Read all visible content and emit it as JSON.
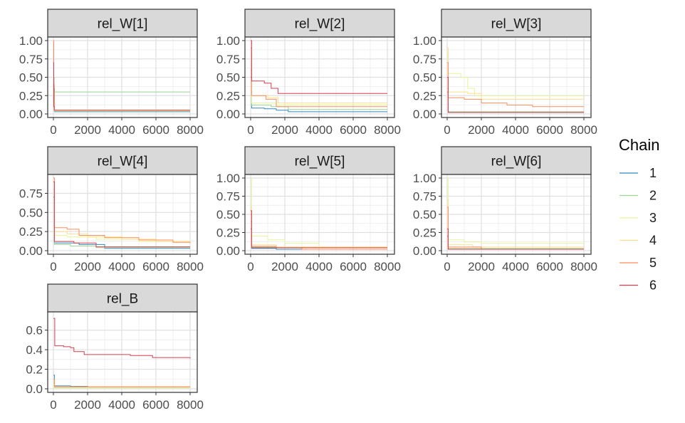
{
  "legend": {
    "title": "Chain",
    "items": [
      {
        "label": "1",
        "color": "#3288bd"
      },
      {
        "label": "2",
        "color": "#99d594"
      },
      {
        "label": "3",
        "color": "#e6f598"
      },
      {
        "label": "4",
        "color": "#fee08b"
      },
      {
        "label": "5",
        "color": "#fc8d59"
      },
      {
        "label": "6",
        "color": "#d53e4f"
      }
    ]
  },
  "chart_data": [
    {
      "type": "line",
      "title": "rel_W[1]",
      "xlim": [
        0,
        8000
      ],
      "ylim": [
        0,
        1
      ],
      "x_ticks": [
        "0",
        "2000",
        "4000",
        "6000",
        "8000"
      ],
      "y_ticks": [
        "0.00",
        "0.25",
        "0.50",
        "0.75",
        "1.00"
      ],
      "grid": true,
      "series": [
        {
          "name": "1",
          "x": [
            0,
            20,
            60,
            8000
          ],
          "y": [
            0.8,
            0.35,
            0.03,
            0.03
          ]
        },
        {
          "name": "2",
          "x": [
            0,
            20,
            40,
            8000
          ],
          "y": [
            0.95,
            0.5,
            0.3,
            0.3
          ]
        },
        {
          "name": "3",
          "x": [
            0,
            20,
            50,
            8000
          ],
          "y": [
            0.6,
            0.2,
            0.04,
            0.04
          ]
        },
        {
          "name": "4",
          "x": [
            0,
            20,
            50,
            8000
          ],
          "y": [
            0.9,
            0.3,
            0.05,
            0.05
          ]
        },
        {
          "name": "5",
          "x": [
            0,
            20,
            50,
            8000
          ],
          "y": [
            1.0,
            0.4,
            0.05,
            0.05
          ]
        },
        {
          "name": "6",
          "x": [
            0,
            20,
            50,
            8000
          ],
          "y": [
            0.7,
            0.1,
            0.05,
            0.05
          ]
        }
      ]
    },
    {
      "type": "line",
      "title": "rel_W[2]",
      "xlim": [
        0,
        8000
      ],
      "ylim": [
        0,
        1
      ],
      "x_ticks": [
        "0",
        "2000",
        "4000",
        "6000",
        "8000"
      ],
      "y_ticks": [
        "0.00",
        "0.25",
        "0.50",
        "0.75",
        "1.00"
      ],
      "grid": true,
      "series": [
        {
          "name": "1",
          "x": [
            0,
            60,
            800,
            1500,
            2200,
            8000
          ],
          "y": [
            0.5,
            0.08,
            0.07,
            0.05,
            0.03,
            0.03
          ]
        },
        {
          "name": "2",
          "x": [
            0,
            60,
            1200,
            2200,
            8000
          ],
          "y": [
            0.6,
            0.12,
            0.1,
            0.06,
            0.06
          ]
        },
        {
          "name": "3",
          "x": [
            0,
            60,
            1500,
            8000
          ],
          "y": [
            0.7,
            0.15,
            0.12,
            0.12
          ]
        },
        {
          "name": "4",
          "x": [
            0,
            60,
            1000,
            1600,
            8000
          ],
          "y": [
            0.8,
            0.25,
            0.22,
            0.15,
            0.15
          ]
        },
        {
          "name": "5",
          "x": [
            0,
            60,
            900,
            1500,
            8000
          ],
          "y": [
            0.9,
            0.25,
            0.2,
            0.1,
            0.1
          ]
        },
        {
          "name": "6",
          "x": [
            0,
            60,
            800,
            1200,
            1600,
            4000,
            6000,
            8000
          ],
          "y": [
            1.0,
            0.45,
            0.42,
            0.35,
            0.28,
            0.28,
            0.28,
            0.28
          ]
        }
      ]
    },
    {
      "type": "line",
      "title": "rel_W[3]",
      "xlim": [
        0,
        8000
      ],
      "ylim": [
        0,
        1
      ],
      "x_ticks": [
        "0",
        "2000",
        "4000",
        "6000",
        "8000"
      ],
      "y_ticks": [
        "0.00",
        "0.25",
        "0.50",
        "0.75",
        "1.00"
      ],
      "grid": true,
      "series": [
        {
          "name": "1",
          "x": [
            0,
            60,
            8000
          ],
          "y": [
            0.3,
            0.02,
            0.02
          ]
        },
        {
          "name": "2",
          "x": [
            0,
            60,
            8000
          ],
          "y": [
            0.35,
            0.03,
            0.03
          ]
        },
        {
          "name": "3",
          "x": [
            0,
            60,
            800,
            1200,
            1600,
            8000
          ],
          "y": [
            0.85,
            0.55,
            0.5,
            0.35,
            0.25,
            0.25
          ]
        },
        {
          "name": "4",
          "x": [
            0,
            60,
            1200,
            2000,
            8000
          ],
          "y": [
            0.9,
            0.3,
            0.28,
            0.2,
            0.2
          ]
        },
        {
          "name": "5",
          "x": [
            0,
            60,
            1000,
            2000,
            3500,
            5000,
            8000
          ],
          "y": [
            0.7,
            0.22,
            0.2,
            0.15,
            0.12,
            0.1,
            0.1
          ]
        },
        {
          "name": "6",
          "x": [
            0,
            60,
            8000
          ],
          "y": [
            0.5,
            0.02,
            0.02
          ]
        }
      ]
    },
    {
      "type": "line",
      "title": "rel_W[4]",
      "xlim": [
        0,
        8000
      ],
      "ylim": [
        0,
        0.95
      ],
      "x_ticks": [
        "0",
        "2000",
        "4000",
        "6000",
        "8000"
      ],
      "y_ticks": [
        "0.00",
        "0.25",
        "0.50",
        "0.75"
      ],
      "grid": true,
      "series": [
        {
          "name": "1",
          "x": [
            0,
            60,
            1500,
            3000,
            8000
          ],
          "y": [
            0.7,
            0.1,
            0.08,
            0.03,
            0.03
          ]
        },
        {
          "name": "2",
          "x": [
            0,
            60,
            1000,
            2500,
            8000
          ],
          "y": [
            0.8,
            0.08,
            0.06,
            0.04,
            0.04
          ]
        },
        {
          "name": "3",
          "x": [
            0,
            60,
            800,
            2500,
            5000,
            8000
          ],
          "y": [
            0.6,
            0.2,
            0.18,
            0.15,
            0.12,
            0.12
          ]
        },
        {
          "name": "4",
          "x": [
            0,
            60,
            800,
            2000,
            4000,
            6000,
            8000
          ],
          "y": [
            0.85,
            0.25,
            0.22,
            0.18,
            0.15,
            0.12,
            0.12
          ]
        },
        {
          "name": "5",
          "x": [
            0,
            60,
            800,
            1500,
            3000,
            5000,
            7000,
            8000
          ],
          "y": [
            0.95,
            0.3,
            0.28,
            0.2,
            0.17,
            0.14,
            0.11,
            0.1
          ]
        },
        {
          "name": "6",
          "x": [
            0,
            60,
            1200,
            2500,
            8000
          ],
          "y": [
            0.9,
            0.12,
            0.1,
            0.05,
            0.05
          ]
        }
      ]
    },
    {
      "type": "line",
      "title": "rel_W[5]",
      "xlim": [
        0,
        8000
      ],
      "ylim": [
        0,
        1
      ],
      "x_ticks": [
        "0",
        "2000",
        "4000",
        "6000",
        "8000"
      ],
      "y_ticks": [
        "0.00",
        "0.25",
        "0.50",
        "0.75",
        "1.00"
      ],
      "grid": true,
      "series": [
        {
          "name": "1",
          "x": [
            0,
            60,
            1500,
            8000
          ],
          "y": [
            0.3,
            0.03,
            0.02,
            0.02
          ]
        },
        {
          "name": "2",
          "x": [
            0,
            60,
            8000
          ],
          "y": [
            0.4,
            0.05,
            0.05
          ]
        },
        {
          "name": "3",
          "x": [
            0,
            60,
            1000,
            2000,
            4000,
            8000
          ],
          "y": [
            1.0,
            0.2,
            0.15,
            0.1,
            0.05,
            0.05
          ]
        },
        {
          "name": "4",
          "x": [
            0,
            60,
            1500,
            8000
          ],
          "y": [
            0.6,
            0.08,
            0.05,
            0.05
          ]
        },
        {
          "name": "5",
          "x": [
            0,
            60,
            1500,
            3000,
            8000
          ],
          "y": [
            0.5,
            0.06,
            0.04,
            0.02,
            0.02
          ]
        },
        {
          "name": "6",
          "x": [
            0,
            60,
            8000
          ],
          "y": [
            0.55,
            0.04,
            0.04
          ]
        }
      ]
    },
    {
      "type": "line",
      "title": "rel_W[6]",
      "xlim": [
        0,
        8000
      ],
      "ylim": [
        0,
        1
      ],
      "x_ticks": [
        "0",
        "2000",
        "4000",
        "6000",
        "8000"
      ],
      "y_ticks": [
        "0.00",
        "0.25",
        "0.50",
        "0.75",
        "1.00"
      ],
      "grid": true,
      "series": [
        {
          "name": "1",
          "x": [
            0,
            60,
            8000
          ],
          "y": [
            0.2,
            0.02,
            0.02
          ]
        },
        {
          "name": "2",
          "x": [
            0,
            60,
            8000
          ],
          "y": [
            0.25,
            0.03,
            0.03
          ]
        },
        {
          "name": "3",
          "x": [
            0,
            60,
            1000,
            2000,
            8000
          ],
          "y": [
            1.0,
            0.15,
            0.12,
            0.1,
            0.1
          ]
        },
        {
          "name": "4",
          "x": [
            0,
            60,
            1500,
            8000
          ],
          "y": [
            0.7,
            0.08,
            0.05,
            0.05
          ]
        },
        {
          "name": "5",
          "x": [
            0,
            60,
            2000,
            8000
          ],
          "y": [
            0.6,
            0.05,
            0.02,
            0.02
          ]
        },
        {
          "name": "6",
          "x": [
            0,
            60,
            8000
          ],
          "y": [
            0.3,
            0.02,
            0.02
          ]
        }
      ]
    },
    {
      "type": "line",
      "title": "rel_B",
      "xlim": [
        0,
        8000
      ],
      "ylim": [
        0,
        0.75
      ],
      "x_ticks": [
        "0",
        "2000",
        "4000",
        "6000",
        "8000"
      ],
      "y_ticks": [
        "0.0",
        "0.2",
        "0.4",
        "0.6"
      ],
      "grid": true,
      "series": [
        {
          "name": "1",
          "x": [
            0,
            60,
            1000,
            2000,
            8000
          ],
          "y": [
            0.14,
            0.03,
            0.025,
            0.02,
            0.02
          ]
        },
        {
          "name": "2",
          "x": [
            0,
            60,
            8000
          ],
          "y": [
            0.06,
            0.01,
            0.01
          ]
        },
        {
          "name": "3",
          "x": [
            0,
            60,
            8000
          ],
          "y": [
            0.05,
            0.01,
            0.01
          ]
        },
        {
          "name": "4",
          "x": [
            0,
            60,
            8000
          ],
          "y": [
            0.08,
            0.015,
            0.015
          ]
        },
        {
          "name": "5",
          "x": [
            0,
            60,
            8000
          ],
          "y": [
            0.1,
            0.02,
            0.02
          ]
        },
        {
          "name": "6",
          "x": [
            0,
            80,
            600,
            1000,
            1200,
            1800,
            3000,
            4500,
            5800,
            8000
          ],
          "y": [
            0.72,
            0.44,
            0.43,
            0.42,
            0.38,
            0.35,
            0.35,
            0.34,
            0.32,
            0.31
          ]
        }
      ]
    }
  ]
}
